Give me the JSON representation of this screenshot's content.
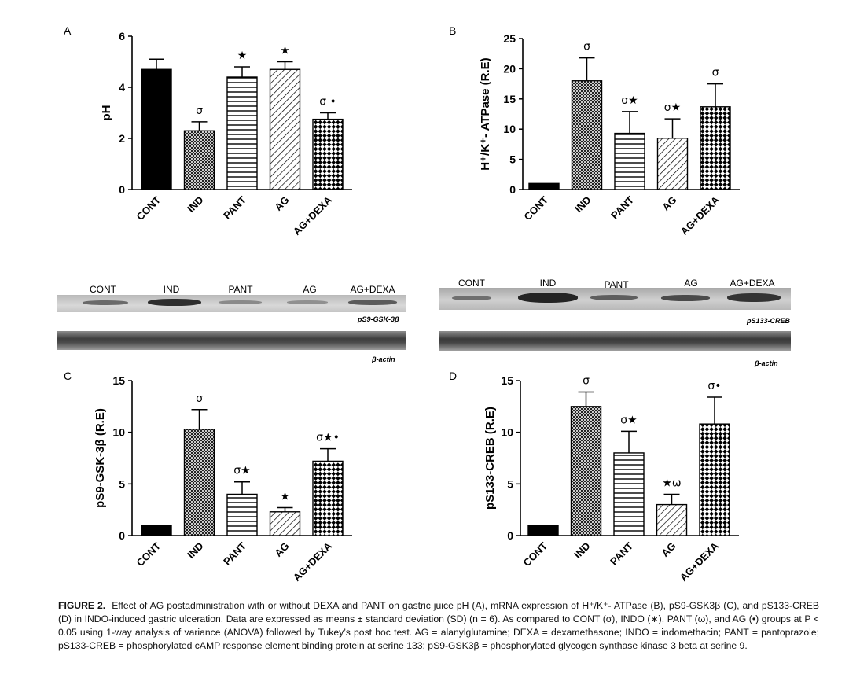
{
  "chart_data": [
    {
      "panel": "A",
      "type": "bar",
      "ylabel": "pH",
      "ylim": [
        0,
        6
      ],
      "yticks": [
        0,
        2,
        4,
        6
      ],
      "categories": [
        "CONT",
        "IND",
        "PANT",
        "AG",
        "AG+DEXA"
      ],
      "values": [
        4.7,
        2.3,
        4.4,
        4.7,
        2.75
      ],
      "errors": [
        0.4,
        0.35,
        0.4,
        0.3,
        0.25
      ],
      "annotations": [
        "",
        "σ",
        "★",
        "★",
        "σ •"
      ]
    },
    {
      "panel": "B",
      "type": "bar",
      "ylabel": "H⁺/K⁺- ATPase (R.E)",
      "ylim": [
        0,
        25
      ],
      "yticks": [
        0,
        5,
        10,
        15,
        20,
        25
      ],
      "categories": [
        "CONT",
        "IND",
        "PANT",
        "AG",
        "AG+DEXA"
      ],
      "values": [
        1,
        18,
        9.3,
        8.5,
        13.7
      ],
      "errors": [
        0,
        3.8,
        3.6,
        3.2,
        3.8
      ],
      "annotations": [
        "",
        "σ",
        "σ★",
        "σ★",
        "σ"
      ]
    },
    {
      "panel": "C",
      "type": "bar",
      "ylabel": "pS9-GSK-3β (R.E)",
      "ylim": [
        0,
        15
      ],
      "yticks": [
        0,
        5,
        10,
        15
      ],
      "categories": [
        "CONT",
        "IND",
        "PANT",
        "AG",
        "AG+DEXA"
      ],
      "values": [
        1,
        10.3,
        4.0,
        2.3,
        7.2
      ],
      "errors": [
        0,
        1.9,
        1.2,
        0.4,
        1.2
      ],
      "annotations": [
        "",
        "σ",
        "σ★",
        "★",
        "σ★•"
      ]
    },
    {
      "panel": "D",
      "type": "bar",
      "ylabel": "pS133-CREB (R.E)",
      "ylim": [
        0,
        15
      ],
      "yticks": [
        0,
        5,
        10,
        15
      ],
      "categories": [
        "CONT",
        "IND",
        "PANT",
        "AG",
        "AG+DEXA"
      ],
      "values": [
        1,
        12.5,
        8.0,
        3.0,
        10.8
      ],
      "errors": [
        0,
        1.4,
        2.1,
        1.0,
        2.6
      ],
      "annotations": [
        "",
        "σ",
        "σ★",
        "★ω",
        "σ•"
      ]
    }
  ],
  "blots": {
    "left": {
      "lanes": [
        "CONT",
        "IND",
        "PANT",
        "AG",
        "AG+DEXA"
      ],
      "protein_label": "pS9-GSK-3β",
      "loading_label": "β-actin"
    },
    "right": {
      "lanes": [
        "CONT",
        "IND",
        "PANT",
        "AG",
        "AG+DEXA"
      ],
      "protein_label": "pS133-CREB",
      "loading_label": "β-actin"
    }
  },
  "caption": {
    "lead": "FIGURE 2.",
    "text": "Effect of AG postadministration with or without DEXA and PANT on gastric juice pH (A), mRNA expression of H⁺/K⁺- ATPase (B), pS9-GSK3β (C), and pS133-CREB (D) in INDO-induced gastric ulceration. Data are expressed as means ± standard deviation (SD) (n = 6). As compared to CONT (σ), INDO (∗), PANT (ω), and AG (•) groups at P < 0.05 using 1-way analysis of variance (ANOVA) followed by Tukey’s post hoc test. AG = alanylglutamine; DEXA = dexamethasone; INDO = indomethacin; PANT = pantoprazole; pS133-CREB = phosphorylated cAMP response element binding protein at serine 133; pS9-GSK3β = phosphorylated glycogen synthase kinase 3 beta at serine 9."
  },
  "colors": {
    "bar_fill_solid": "#000000",
    "axis": "#000000",
    "blot_bg": "#cfcfcf",
    "blot_band": "#2b2b2b"
  }
}
